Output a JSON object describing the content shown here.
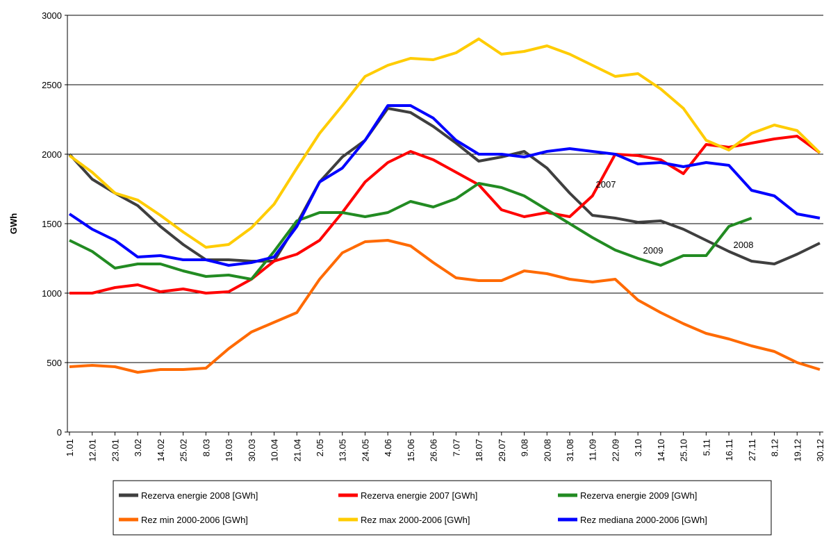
{
  "chart_data": {
    "type": "line",
    "y_label": "GWh",
    "categories": [
      "1.01",
      "12.01",
      "23.01",
      "3.02",
      "14.02",
      "25.02",
      "8.03",
      "19.03",
      "30.03",
      "10.04",
      "21.04",
      "2.05",
      "13.05",
      "24.05",
      "4.06",
      "15.06",
      "26.06",
      "7.07",
      "18.07",
      "29.07",
      "9.08",
      "20.08",
      "31.08",
      "11.09",
      "22.09",
      "3.10",
      "14.10",
      "25.10",
      "5.11",
      "16.11",
      "27.11",
      "8.12",
      "19.12",
      "30.12"
    ],
    "series": [
      {
        "name": "Rezerva energie 2008 [GWh]",
        "color": "#3f3f3f",
        "values": [
          2000,
          1820,
          1720,
          1630,
          1480,
          1350,
          1240,
          1240,
          1230,
          1230,
          1500,
          1800,
          1980,
          2100,
          2330,
          2300,
          2200,
          2080,
          1950,
          1980,
          2020,
          1900,
          1720,
          1560,
          1540,
          1510,
          1520,
          1460,
          1380,
          1300,
          1230,
          1210,
          1280,
          1360
        ]
      },
      {
        "name": "Rezerva energie 2007 [GWh]",
        "color": "#ff0000",
        "values": [
          1000,
          1000,
          1040,
          1060,
          1010,
          1030,
          1000,
          1010,
          1100,
          1230,
          1280,
          1380,
          1580,
          1800,
          1940,
          2020,
          1960,
          1870,
          1780,
          1600,
          1550,
          1580,
          1550,
          1700,
          2000,
          1990,
          1960,
          1860,
          2070,
          2050,
          2080,
          2110,
          2130,
          2010
        ]
      },
      {
        "name": "Rezerva energie 2009 [GWh]",
        "color": "#228b22",
        "values": [
          1380,
          1300,
          1180,
          1210,
          1210,
          1160,
          1120,
          1130,
          1100,
          1300,
          1520,
          1580,
          1580,
          1550,
          1580,
          1660,
          1620,
          1680,
          1790,
          1760,
          1700,
          1600,
          1500,
          1400,
          1310,
          1250,
          1200,
          1270,
          1270,
          1480,
          1540,
          null,
          null,
          null
        ]
      },
      {
        "name": "Rez min 2000-2006 [GWh]",
        "color": "#ff6a00",
        "values": [
          470,
          480,
          470,
          430,
          450,
          450,
          460,
          600,
          720,
          790,
          860,
          1100,
          1290,
          1370,
          1380,
          1340,
          1220,
          1110,
          1090,
          1090,
          1160,
          1140,
          1100,
          1080,
          1100,
          950,
          860,
          780,
          710,
          670,
          620,
          580,
          500,
          450
        ]
      },
      {
        "name": "Rez max 2000-2006 [GWh]",
        "color": "#ffcc00",
        "values": [
          1990,
          1870,
          1720,
          1670,
          1560,
          1440,
          1330,
          1350,
          1470,
          1640,
          1900,
          2150,
          2350,
          2560,
          2640,
          2690,
          2680,
          2730,
          2830,
          2720,
          2740,
          2780,
          2720,
          2640,
          2560,
          2580,
          2470,
          2330,
          2100,
          2030,
          2150,
          2210,
          2170,
          2010
        ]
      },
      {
        "name": "Rez mediana 2000-2006 [GWh]",
        "color": "#0000ff",
        "values": [
          1570,
          1460,
          1380,
          1260,
          1270,
          1240,
          1240,
          1200,
          1220,
          1260,
          1480,
          1800,
          1900,
          2100,
          2350,
          2350,
          2260,
          2100,
          2000,
          2000,
          1980,
          2020,
          2040,
          2020,
          2000,
          1930,
          1940,
          1910,
          1940,
          1920,
          1740,
          1700,
          1570,
          1540
        ]
      }
    ],
    "annotations": [
      "2007",
      "2009",
      "2008"
    ],
    "ylim": [
      0,
      3000
    ],
    "yticks": [
      0,
      500,
      1000,
      1500,
      2000,
      2500,
      3000
    ],
    "grid": true
  }
}
